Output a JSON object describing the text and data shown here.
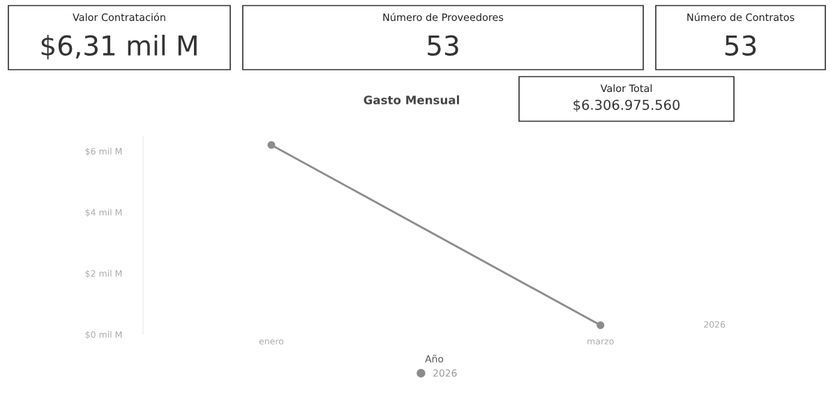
{
  "chart_data": {
    "type": "line",
    "title": "Gasto Mensual",
    "categories": [
      "enero",
      "marzo"
    ],
    "series": [
      {
        "name": "2026",
        "color": "#8c8c8c",
        "values": [
          6.2,
          0.3
        ]
      }
    ],
    "ylim": [
      0,
      6.5
    ],
    "yticks": [
      {
        "value": 0,
        "label": "$0 mil M"
      },
      {
        "value": 2,
        "label": "$2 mil M"
      },
      {
        "value": 4,
        "label": "$4 mil M"
      },
      {
        "value": 6,
        "label": "$6 mil M"
      }
    ],
    "legend_title": "Año",
    "legend": "bottom",
    "marker": "circle",
    "line_style": "solid",
    "grid": false,
    "annotations": [
      "Valor Contratación",
      "$6,31 mil M",
      "Número de Proveedores",
      "53",
      "Número de Contratos",
      "53",
      "Valor Total",
      "$6.306.975.560"
    ]
  }
}
